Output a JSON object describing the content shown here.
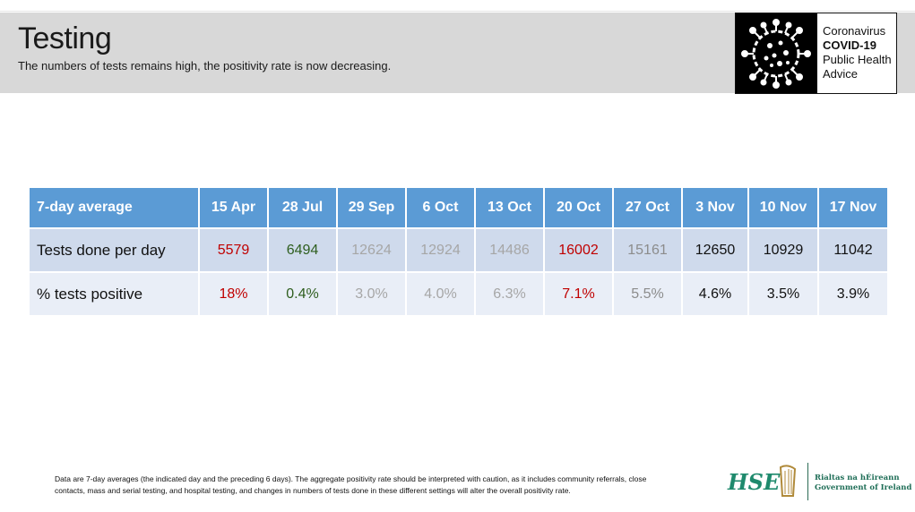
{
  "header": {
    "title": "Testing",
    "subtitle": "The numbers of tests remains high, the positivity rate is now decreasing."
  },
  "logo": {
    "line1": "Coronavirus",
    "line2": "COVID-19",
    "line3": "Public Health",
    "line4": "Advice",
    "icon": "virus-icon"
  },
  "table": {
    "columns": [
      "7-day average",
      "15 Apr",
      "28 Jul",
      "29 Sep",
      "6 Oct",
      "13 Oct",
      "20 Oct",
      "27 Oct",
      "3 Nov",
      "10 Nov",
      "17 Nov"
    ],
    "rows": [
      {
        "label": "Tests done per day",
        "values": [
          "5579",
          "6494",
          "12624",
          "12924",
          "14486",
          "16002",
          "15161",
          "12650",
          "10929",
          "11042"
        ]
      },
      {
        "label": "% tests positive",
        "values": [
          "18%",
          "0.4%",
          "3.0%",
          "4.0%",
          "6.3%",
          "7.1%",
          "5.5%",
          "4.6%",
          "3.5%",
          "3.9%"
        ]
      }
    ],
    "column_colors": [
      "#c00000",
      "#2e5e1e",
      "#a6a6a6",
      "#a6a6a6",
      "#a6a6a6",
      "#c00000",
      "#8c8c8c",
      "#111111",
      "#111111",
      "#111111"
    ],
    "header_color": "#5b9bd5"
  },
  "footer": {
    "note": "Data are 7-day averages (the indicated day and the preceding 6 days).  The aggregate positivity rate should be interpreted with caution, as it includes community referrals, close contacts, mass and serial testing, and hospital testing, and changes in numbers of tests done in these different settings will alter the overall positivity rate.",
    "hse_logo": "HSE",
    "gov_line1": "Rialtas na hÉireann",
    "gov_line2": "Government of Ireland",
    "harp_icon": "harp-icon"
  }
}
